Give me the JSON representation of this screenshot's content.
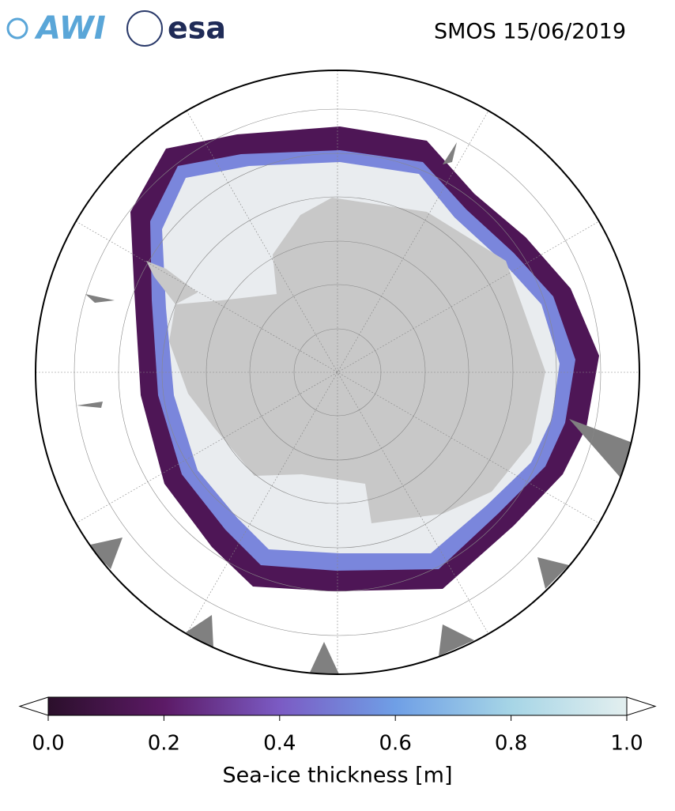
{
  "header": {
    "logos": [
      "AWI",
      "esa"
    ],
    "title": "SMOS 15/06/2019"
  },
  "colorbar": {
    "label": "Sea-ice thickness [m]",
    "lim": [
      0,
      1
    ],
    "ticks": [
      {
        "value": 0,
        "label": "0.0"
      },
      {
        "value": 0.2,
        "label": "0.2"
      },
      {
        "value": 0.4,
        "label": "0.4"
      },
      {
        "value": 0.6,
        "label": "0.6"
      },
      {
        "value": 0.8,
        "label": "0.8"
      },
      {
        "value": 1,
        "label": "1.0"
      }
    ],
    "colors": [
      "#2b0f2b",
      "#5c1a66",
      "#7b5bc4",
      "#6f9fe6",
      "#a6d5e6",
      "#e3efef"
    ]
  }
}
